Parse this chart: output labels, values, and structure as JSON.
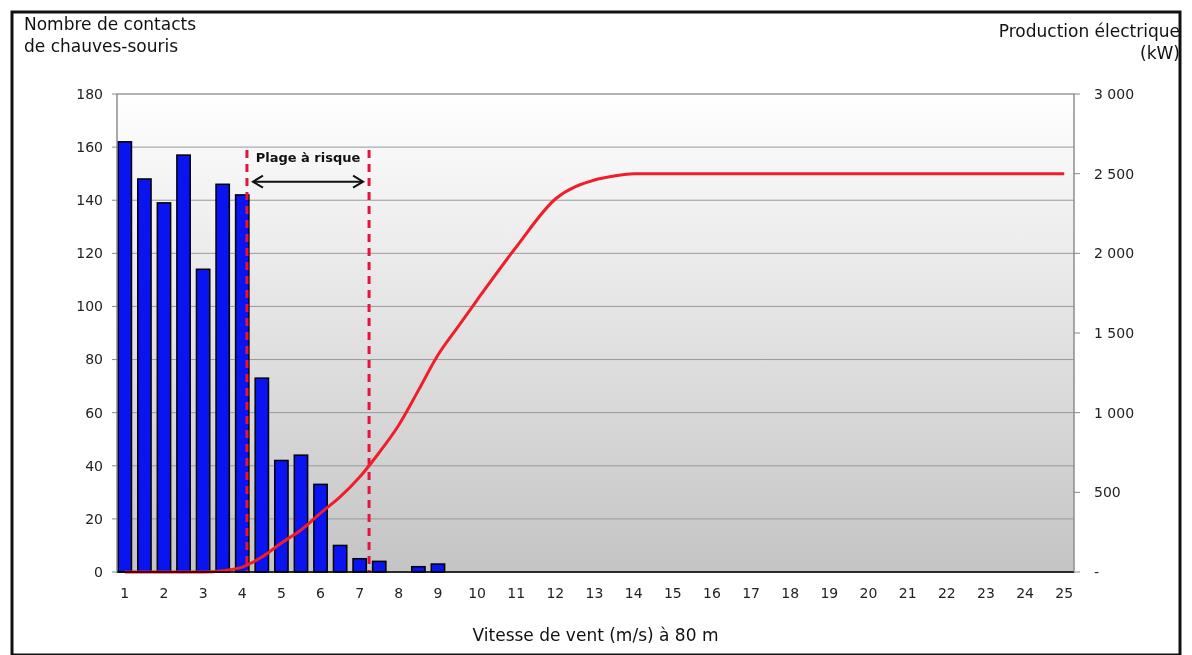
{
  "chart_data": {
    "type": "bar",
    "ylabel": "Nombre de contacts\nde chauves-souris",
    "y2label": "Production électrique\n(kW)",
    "xlabel": "Vitesse de vent (m/s) à 80 m",
    "xlim": [
      0.8,
      25.25
    ],
    "xticks": [
      1,
      2,
      3,
      4,
      5,
      6,
      7,
      8,
      9,
      10,
      11,
      12,
      13,
      14,
      15,
      16,
      17,
      18,
      19,
      20,
      21,
      22,
      23,
      24,
      25
    ],
    "ylim": [
      0,
      180
    ],
    "yticks": [
      0,
      20,
      40,
      60,
      80,
      100,
      120,
      140,
      160,
      180
    ],
    "y2lim": [
      0,
      3000
    ],
    "y2ticks": [
      {
        "value": 0,
        "label": "-"
      },
      500,
      {
        "value": 1000,
        "label": "1 000"
      },
      {
        "value": 1500,
        "label": "1 500"
      },
      {
        "value": 2000,
        "label": "2 000"
      },
      {
        "value": 2500,
        "label": "2 500"
      },
      {
        "value": 3000,
        "label": "3 000"
      }
    ],
    "grid": "y",
    "series": [
      {
        "color": "#0a14f0",
        "x": [
          1,
          1.5,
          2,
          2.5,
          3,
          3.5,
          4,
          4.5,
          5,
          5.5,
          6,
          6.5,
          7,
          7.5,
          8.5,
          9
        ],
        "values": [
          162,
          148,
          139,
          157,
          114,
          146,
          142,
          73,
          42,
          44,
          33,
          10,
          5,
          4,
          2,
          3
        ]
      },
      {
        "type": "line",
        "axis": "y2",
        "color": "#f01e28",
        "marker": "none",
        "line_style": "solid",
        "x": [
          1,
          2,
          3,
          3.5,
          4,
          4.5,
          5,
          5.5,
          6,
          6.5,
          7,
          7.5,
          8,
          8.5,
          9,
          9.5,
          10,
          11,
          12,
          13,
          13.5,
          14,
          15,
          16,
          17,
          18,
          19,
          20,
          21,
          22,
          23,
          24,
          25
        ],
        "values": [
          0,
          0,
          0,
          8,
          31,
          94,
          182,
          264,
          370,
          471,
          596,
          750,
          923,
          1140,
          1362,
          1535,
          1707,
          2040,
          2341,
          2460,
          2485,
          2500,
          2500,
          2500,
          2500,
          2500,
          2500,
          2500,
          2500,
          2500,
          2500,
          2500,
          2500
        ]
      }
    ],
    "ref_lines": [
      {
        "axis": "x",
        "value": 4.12,
        "color": "#e4143c",
        "line_style": "dashed"
      },
      {
        "axis": "x",
        "value": 7.24,
        "color": "#e4143c",
        "line_style": "dashed"
      }
    ],
    "annotations": [
      "Plage à risque"
    ]
  }
}
